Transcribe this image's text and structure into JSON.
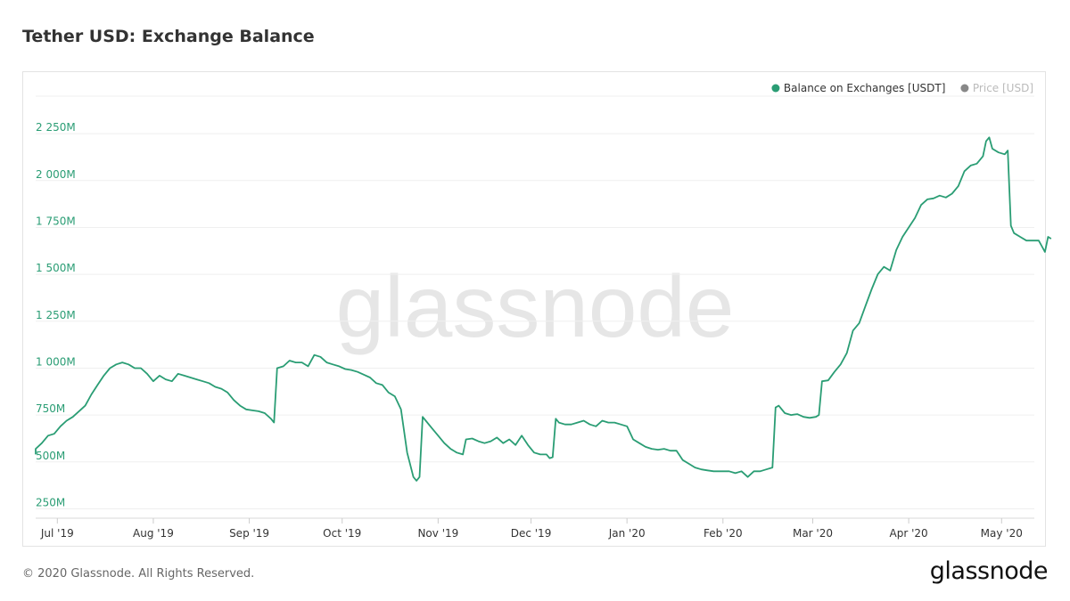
{
  "page": {
    "title": "Tether USD: Exchange Balance",
    "copyright": "© 2020 Glassnode. All Rights Reserved.",
    "footer_logo": "glassnode",
    "watermark": "glassnode"
  },
  "colors": {
    "series": "#2a9d74",
    "muted": "#bbbbbb",
    "grid": "#efefef",
    "axis_text": "#333333",
    "watermark": "#e6e6e6"
  },
  "chart_data": {
    "type": "line",
    "title": "Tether USD: Exchange Balance",
    "grid": true,
    "legend_position": "top-right",
    "legend": [
      {
        "label": "Balance on Exchanges [USDT]",
        "color": "#2a9d74",
        "active": true
      },
      {
        "label": "Price [USD]",
        "color": "#888888",
        "active": false
      }
    ],
    "yaxis": {
      "min": 200,
      "max": 2450,
      "ticks": [
        250,
        500,
        750,
        1000,
        1250,
        1500,
        1750,
        2000,
        2250
      ],
      "tick_labels": [
        "250M",
        "500M",
        "750M",
        "1 000M",
        "1 250M",
        "1 500M",
        "1 750M",
        "2 000M",
        "2 250M"
      ]
    },
    "xaxis": {
      "start": "2019-06-24",
      "end": "2020-05-11",
      "ticks": [
        "2019-07-01",
        "2019-08-01",
        "2019-09-01",
        "2019-10-01",
        "2019-11-01",
        "2019-12-01",
        "2020-01-01",
        "2020-02-01",
        "2020-03-01",
        "2020-04-01",
        "2020-05-01"
      ],
      "tick_labels": [
        "Jul '19",
        "Aug '19",
        "Sep '19",
        "Oct '19",
        "Nov '19",
        "Dec '19",
        "Jan '20",
        "Feb '20",
        "Mar '20",
        "Apr '20",
        "May '20"
      ]
    },
    "series": [
      {
        "name": "Balance on Exchanges [USDT]",
        "points": [
          [
            "2019-06-22",
            540
          ],
          [
            "2019-06-24",
            570
          ],
          [
            "2019-06-26",
            600
          ],
          [
            "2019-06-28",
            640
          ],
          [
            "2019-06-30",
            650
          ],
          [
            "2019-07-02",
            690
          ],
          [
            "2019-07-04",
            720
          ],
          [
            "2019-07-06",
            740
          ],
          [
            "2019-07-08",
            770
          ],
          [
            "2019-07-10",
            800
          ],
          [
            "2019-07-12",
            860
          ],
          [
            "2019-07-14",
            910
          ],
          [
            "2019-07-16",
            960
          ],
          [
            "2019-07-18",
            1000
          ],
          [
            "2019-07-20",
            1020
          ],
          [
            "2019-07-22",
            1030
          ],
          [
            "2019-07-24",
            1020
          ],
          [
            "2019-07-26",
            1000
          ],
          [
            "2019-07-28",
            1000
          ],
          [
            "2019-07-30",
            970
          ],
          [
            "2019-08-01",
            930
          ],
          [
            "2019-08-03",
            960
          ],
          [
            "2019-08-05",
            940
          ],
          [
            "2019-08-07",
            930
          ],
          [
            "2019-08-09",
            970
          ],
          [
            "2019-08-11",
            960
          ],
          [
            "2019-08-13",
            950
          ],
          [
            "2019-08-15",
            940
          ],
          [
            "2019-08-17",
            930
          ],
          [
            "2019-08-19",
            920
          ],
          [
            "2019-08-21",
            900
          ],
          [
            "2019-08-23",
            890
          ],
          [
            "2019-08-25",
            870
          ],
          [
            "2019-08-27",
            830
          ],
          [
            "2019-08-29",
            800
          ],
          [
            "2019-08-31",
            780
          ],
          [
            "2019-09-02",
            775
          ],
          [
            "2019-09-04",
            770
          ],
          [
            "2019-09-06",
            760
          ],
          [
            "2019-09-08",
            730
          ],
          [
            "2019-09-09",
            710
          ],
          [
            "2019-09-10",
            1000
          ],
          [
            "2019-09-12",
            1010
          ],
          [
            "2019-09-14",
            1040
          ],
          [
            "2019-09-16",
            1030
          ],
          [
            "2019-09-18",
            1030
          ],
          [
            "2019-09-20",
            1010
          ],
          [
            "2019-09-22",
            1070
          ],
          [
            "2019-09-24",
            1060
          ],
          [
            "2019-09-26",
            1030
          ],
          [
            "2019-09-28",
            1020
          ],
          [
            "2019-09-30",
            1010
          ],
          [
            "2019-10-02",
            995
          ],
          [
            "2019-10-04",
            990
          ],
          [
            "2019-10-06",
            980
          ],
          [
            "2019-10-08",
            965
          ],
          [
            "2019-10-10",
            950
          ],
          [
            "2019-10-12",
            920
          ],
          [
            "2019-10-14",
            910
          ],
          [
            "2019-10-16",
            870
          ],
          [
            "2019-10-18",
            850
          ],
          [
            "2019-10-20",
            780
          ],
          [
            "2019-10-22",
            550
          ],
          [
            "2019-10-24",
            420
          ],
          [
            "2019-10-25",
            400
          ],
          [
            "2019-10-26",
            420
          ],
          [
            "2019-10-27",
            740
          ],
          [
            "2019-10-28",
            720
          ],
          [
            "2019-10-30",
            680
          ],
          [
            "2019-11-01",
            640
          ],
          [
            "2019-11-03",
            600
          ],
          [
            "2019-11-05",
            570
          ],
          [
            "2019-11-07",
            550
          ],
          [
            "2019-11-09",
            540
          ],
          [
            "2019-11-10",
            620
          ],
          [
            "2019-11-12",
            625
          ],
          [
            "2019-11-14",
            610
          ],
          [
            "2019-11-16",
            600
          ],
          [
            "2019-11-18",
            610
          ],
          [
            "2019-11-20",
            630
          ],
          [
            "2019-11-22",
            600
          ],
          [
            "2019-11-24",
            620
          ],
          [
            "2019-11-26",
            590
          ],
          [
            "2019-11-28",
            640
          ],
          [
            "2019-11-30",
            590
          ],
          [
            "2019-12-02",
            550
          ],
          [
            "2019-12-04",
            540
          ],
          [
            "2019-12-06",
            540
          ],
          [
            "2019-12-07",
            520
          ],
          [
            "2019-12-08",
            525
          ],
          [
            "2019-12-09",
            730
          ],
          [
            "2019-12-10",
            710
          ],
          [
            "2019-12-12",
            700
          ],
          [
            "2019-12-14",
            700
          ],
          [
            "2019-12-16",
            710
          ],
          [
            "2019-12-18",
            720
          ],
          [
            "2019-12-20",
            700
          ],
          [
            "2019-12-22",
            690
          ],
          [
            "2019-12-24",
            720
          ],
          [
            "2019-12-26",
            710
          ],
          [
            "2019-12-28",
            710
          ],
          [
            "2019-12-30",
            700
          ],
          [
            "2020-01-01",
            690
          ],
          [
            "2020-01-03",
            620
          ],
          [
            "2020-01-05",
            600
          ],
          [
            "2020-01-07",
            580
          ],
          [
            "2020-01-09",
            570
          ],
          [
            "2020-01-11",
            565
          ],
          [
            "2020-01-13",
            570
          ],
          [
            "2020-01-15",
            560
          ],
          [
            "2020-01-17",
            560
          ],
          [
            "2020-01-19",
            510
          ],
          [
            "2020-01-21",
            490
          ],
          [
            "2020-01-23",
            470
          ],
          [
            "2020-01-25",
            460
          ],
          [
            "2020-01-27",
            455
          ],
          [
            "2020-01-29",
            450
          ],
          [
            "2020-02-01",
            450
          ],
          [
            "2020-02-03",
            450
          ],
          [
            "2020-02-05",
            440
          ],
          [
            "2020-02-07",
            450
          ],
          [
            "2020-02-09",
            420
          ],
          [
            "2020-02-11",
            450
          ],
          [
            "2020-02-13",
            450
          ],
          [
            "2020-02-15",
            460
          ],
          [
            "2020-02-17",
            470
          ],
          [
            "2020-02-18",
            790
          ],
          [
            "2020-02-19",
            800
          ],
          [
            "2020-02-21",
            760
          ],
          [
            "2020-02-23",
            750
          ],
          [
            "2020-02-25",
            755
          ],
          [
            "2020-02-27",
            740
          ],
          [
            "2020-02-29",
            735
          ],
          [
            "2020-03-02",
            740
          ],
          [
            "2020-03-03",
            750
          ],
          [
            "2020-03-04",
            930
          ],
          [
            "2020-03-06",
            935
          ],
          [
            "2020-03-08",
            980
          ],
          [
            "2020-03-10",
            1020
          ],
          [
            "2020-03-12",
            1080
          ],
          [
            "2020-03-14",
            1200
          ],
          [
            "2020-03-16",
            1240
          ],
          [
            "2020-03-18",
            1330
          ],
          [
            "2020-03-20",
            1420
          ],
          [
            "2020-03-22",
            1500
          ],
          [
            "2020-03-24",
            1540
          ],
          [
            "2020-03-26",
            1520
          ],
          [
            "2020-03-28",
            1630
          ],
          [
            "2020-03-30",
            1700
          ],
          [
            "2020-04-01",
            1750
          ],
          [
            "2020-04-03",
            1800
          ],
          [
            "2020-04-05",
            1870
          ],
          [
            "2020-04-07",
            1900
          ],
          [
            "2020-04-09",
            1905
          ],
          [
            "2020-04-11",
            1920
          ],
          [
            "2020-04-13",
            1910
          ],
          [
            "2020-04-15",
            1930
          ],
          [
            "2020-04-17",
            1970
          ],
          [
            "2020-04-19",
            2050
          ],
          [
            "2020-04-21",
            2080
          ],
          [
            "2020-04-23",
            2090
          ],
          [
            "2020-04-25",
            2130
          ],
          [
            "2020-04-26",
            2210
          ],
          [
            "2020-04-27",
            2230
          ],
          [
            "2020-04-28",
            2170
          ],
          [
            "2020-04-30",
            2150
          ],
          [
            "2020-05-02",
            2140
          ],
          [
            "2020-05-03",
            2160
          ],
          [
            "2020-05-04",
            1760
          ],
          [
            "2020-05-05",
            1720
          ],
          [
            "2020-05-07",
            1700
          ],
          [
            "2020-05-09",
            1680
          ],
          [
            "2020-05-11",
            1680
          ],
          [
            "2020-05-13",
            1680
          ],
          [
            "2020-05-14",
            1650
          ],
          [
            "2020-05-15",
            1620
          ],
          [
            "2020-05-16",
            1700
          ],
          [
            "2020-05-17",
            1690
          ]
        ]
      }
    ]
  }
}
